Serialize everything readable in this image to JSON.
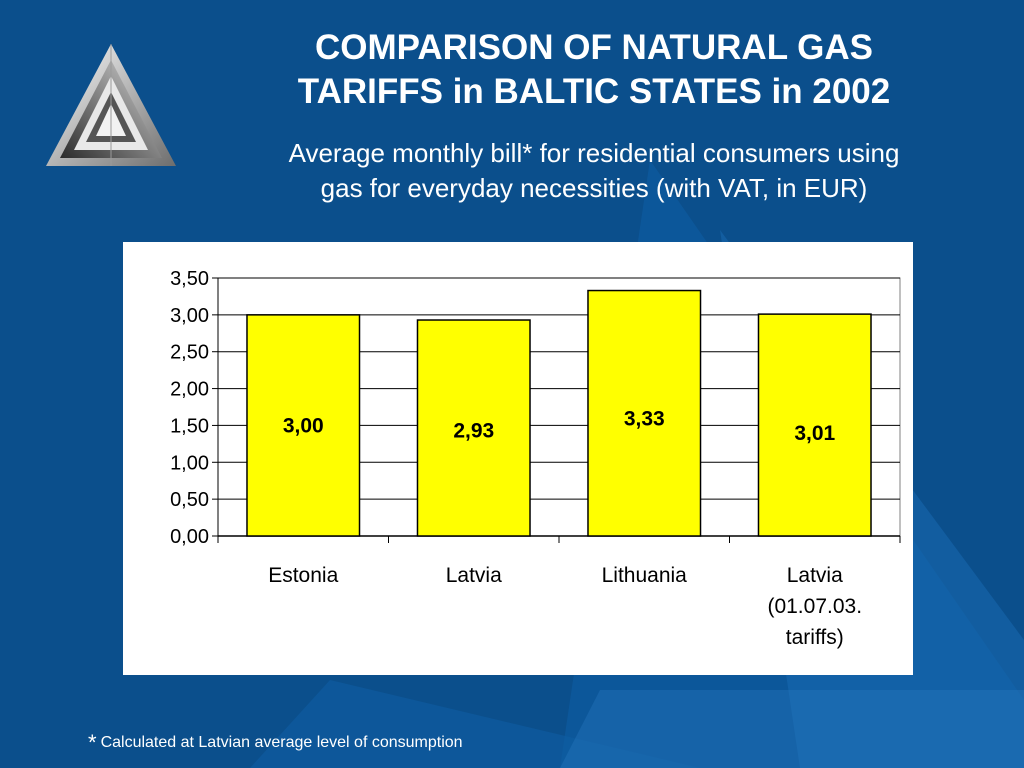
{
  "slide": {
    "title_lines": [
      "COMPARISON OF NATURAL GAS",
      "TARIFFS in BALTIC STATES in 2002"
    ],
    "subtitle_lines": [
      "Average monthly bill* for residential consumers using",
      "gas for everyday necessities (with VAT, in EUR)"
    ],
    "footnote_star": "*",
    "footnote_text": "Calculated at Latvian average level of consumption",
    "background_color": "#0b4f8c",
    "logo_icon": "triangle-logo"
  },
  "chart_data": {
    "type": "bar",
    "categories": [
      [
        "Estonia"
      ],
      [
        "Latvia"
      ],
      [
        "Lithuania"
      ],
      [
        "Latvia",
        "(01.07.03.",
        "tariffs)"
      ]
    ],
    "values": [
      3.0,
      2.93,
      3.33,
      3.01
    ],
    "data_labels": [
      "3,00",
      "2,93",
      "3,33",
      "3,01"
    ],
    "yticks": [
      "0,00",
      "0,50",
      "1,00",
      "1,50",
      "2,00",
      "2,50",
      "3,00",
      "3,50"
    ],
    "ylim": [
      0,
      3.5
    ],
    "grid": true,
    "bar_color": "#ffff00",
    "title": "",
    "xlabel": "",
    "ylabel": ""
  }
}
